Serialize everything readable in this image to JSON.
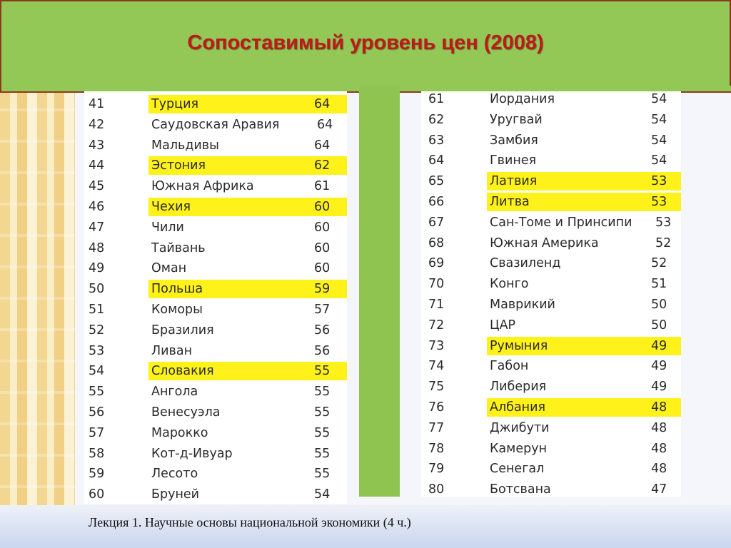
{
  "title": "Сопоставимый уровень цен (2008)",
  "footer": "Лекция 1. Научные основы национальной экономики (4 ч.)",
  "highlight_color": "#fff21a",
  "title_color": "#c01818",
  "left_table": [
    {
      "rank": "41",
      "name": "Турция",
      "value": "64",
      "highlight": true
    },
    {
      "rank": "42",
      "name": "Саудовская Аравия",
      "value": "64",
      "highlight": false
    },
    {
      "rank": "43",
      "name": "Мальдивы",
      "value": "64",
      "highlight": false
    },
    {
      "rank": "44",
      "name": "Эстония",
      "value": "62",
      "highlight": true
    },
    {
      "rank": "45",
      "name": "Южная Африка",
      "value": "61",
      "highlight": false
    },
    {
      "rank": "46",
      "name": "Чехия",
      "value": "60",
      "highlight": true
    },
    {
      "rank": "47",
      "name": "Чили",
      "value": "60",
      "highlight": false
    },
    {
      "rank": "48",
      "name": "Тайвань",
      "value": "60",
      "highlight": false
    },
    {
      "rank": "49",
      "name": "Оман",
      "value": "60",
      "highlight": false
    },
    {
      "rank": "50",
      "name": "Польша",
      "value": "59",
      "highlight": true
    },
    {
      "rank": "51",
      "name": "Коморы",
      "value": "57",
      "highlight": false
    },
    {
      "rank": "52",
      "name": "Бразилия",
      "value": "56",
      "highlight": false
    },
    {
      "rank": "53",
      "name": "Ливан",
      "value": "56",
      "highlight": false
    },
    {
      "rank": "54",
      "name": "Словакия",
      "value": "55",
      "highlight": true
    },
    {
      "rank": "55",
      "name": "Ангола",
      "value": "55",
      "highlight": false
    },
    {
      "rank": "56",
      "name": "Венесуэла",
      "value": "55",
      "highlight": false
    },
    {
      "rank": "57",
      "name": "Марокко",
      "value": "55",
      "highlight": false
    },
    {
      "rank": "58",
      "name": "Кот-д-Ивуар",
      "value": "55",
      "highlight": false
    },
    {
      "rank": "59",
      "name": "Лесото",
      "value": "55",
      "highlight": false
    },
    {
      "rank": "60",
      "name": "Бруней",
      "value": "54",
      "highlight": false
    }
  ],
  "right_table": [
    {
      "rank": "61",
      "name": "Иордания",
      "value": "54",
      "highlight": false
    },
    {
      "rank": "62",
      "name": "Уругвай",
      "value": "54",
      "highlight": false
    },
    {
      "rank": "63",
      "name": "Замбия",
      "value": "54",
      "highlight": false
    },
    {
      "rank": "64",
      "name": "Гвинея",
      "value": "54",
      "highlight": false
    },
    {
      "rank": "65",
      "name": "Латвия",
      "value": "53",
      "highlight": true
    },
    {
      "rank": "66",
      "name": "Литва",
      "value": "53",
      "highlight": true
    },
    {
      "rank": "67",
      "name": "Сан-Томе и Принсипи",
      "value": "53",
      "highlight": false
    },
    {
      "rank": "68",
      "name": "Южная Америка",
      "value": "52",
      "highlight": false
    },
    {
      "rank": "69",
      "name": "Свазиленд",
      "value": "52",
      "highlight": false
    },
    {
      "rank": "70",
      "name": "Конго",
      "value": "51",
      "highlight": false
    },
    {
      "rank": "71",
      "name": "Маврикий",
      "value": "50",
      "highlight": false
    },
    {
      "rank": "72",
      "name": "ЦАР",
      "value": "50",
      "highlight": false
    },
    {
      "rank": "73",
      "name": "Румыния",
      "value": "49",
      "highlight": true
    },
    {
      "rank": "74",
      "name": "Габон",
      "value": "49",
      "highlight": false
    },
    {
      "rank": "75",
      "name": "Либерия",
      "value": "49",
      "highlight": false
    },
    {
      "rank": "76",
      "name": "Албания",
      "value": "48",
      "highlight": true
    },
    {
      "rank": "77",
      "name": "Джибути",
      "value": "48",
      "highlight": false
    },
    {
      "rank": "78",
      "name": "Камерун",
      "value": "48",
      "highlight": false
    },
    {
      "rank": "79",
      "name": "Сенегал",
      "value": "48",
      "highlight": false
    },
    {
      "rank": "80",
      "name": "Ботсвана",
      "value": "47",
      "highlight": false
    }
  ]
}
